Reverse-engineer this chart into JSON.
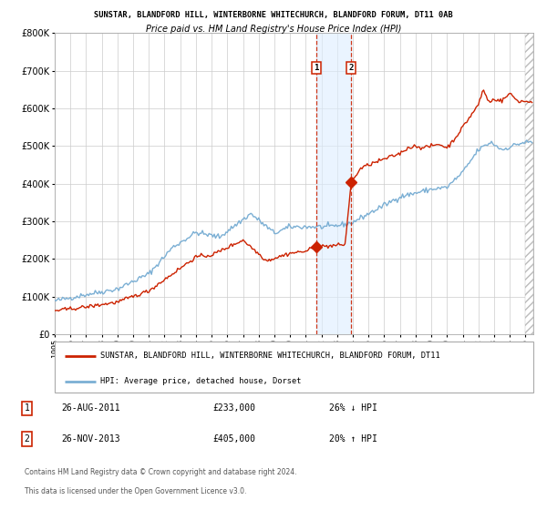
{
  "title1": "SUNSTAR, BLANDFORD HILL, WINTERBORNE WHITECHURCH, BLANDFORD FORUM, DT11 0AB",
  "title2": "Price paid vs. HM Land Registry's House Price Index (HPI)",
  "xlim_start": 1995.0,
  "xlim_end": 2025.5,
  "ylim": [
    0,
    800000
  ],
  "yticks": [
    0,
    100000,
    200000,
    300000,
    400000,
    500000,
    600000,
    700000,
    800000
  ],
  "ytick_labels": [
    "£0",
    "£100K",
    "£200K",
    "£300K",
    "£400K",
    "£500K",
    "£600K",
    "£700K",
    "£800K"
  ],
  "hpi_color": "#7bafd4",
  "price_color": "#cc2200",
  "marker_color": "#cc2200",
  "grid_color": "#cccccc",
  "sale1_date": 2011.65,
  "sale1_price": 233000,
  "sale1_label": "1",
  "sale2_date": 2013.9,
  "sale2_price": 405000,
  "sale2_label": "2",
  "shade_color": "#ddeeff",
  "legend_price_label": "SUNSTAR, BLANDFORD HILL, WINTERBORNE WHITECHURCH, BLANDFORD FORUM, DT11",
  "legend_hpi_label": "HPI: Average price, detached house, Dorset",
  "footer1": "Contains HM Land Registry data © Crown copyright and database right 2024.",
  "footer2": "This data is licensed under the Open Government Licence v3.0.",
  "table_row1": [
    "1",
    "26-AUG-2011",
    "£233,000",
    "26% ↓ HPI"
  ],
  "table_row2": [
    "2",
    "26-NOV-2013",
    "£405,000",
    "20% ↑ HPI"
  ],
  "hatch_start": 2025.0,
  "xtick_start": 1995,
  "xtick_end": 2026
}
